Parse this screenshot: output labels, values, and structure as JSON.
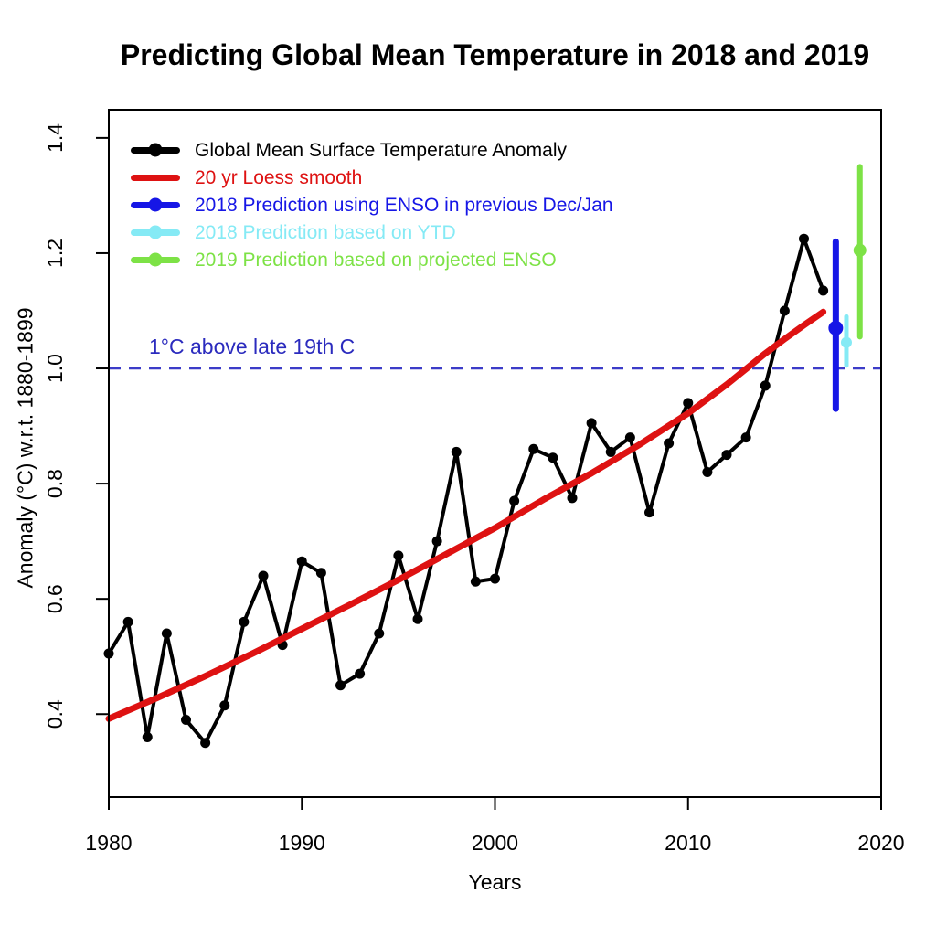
{
  "figure": {
    "title": "Predicting Global Mean Temperature in 2018 and 2019",
    "x_axis_label": "Years",
    "y_axis_label": "Anomaly (°C) w.r.t. 1880-1899"
  },
  "annotation": {
    "text": "1°C above late 19th C",
    "color": "#2B2BBE"
  },
  "legend": {
    "items": [
      {
        "label": "Global Mean Surface Temperature Anomaly",
        "color": "#000000",
        "marker": "line-dot"
      },
      {
        "label": "20 yr Loess smooth",
        "color": "#DE1212",
        "marker": "line"
      },
      {
        "label": "2018 Prediction using ENSO in previous Dec/Jan",
        "color": "#1616E6",
        "marker": "line-dot"
      },
      {
        "label": "2018 Prediction based on YTD",
        "color": "#85EAF5",
        "marker": "line-dot"
      },
      {
        "label": "2019 Prediction based on projected ENSO",
        "color": "#7DE246",
        "marker": "line-dot"
      }
    ]
  },
  "chart_data": {
    "type": "line",
    "title": "Predicting Global Mean Temperature in 2018 and 2019",
    "xlabel": "Years",
    "ylabel": "Anomaly (°C) w.r.t. 1880-1899",
    "xlim": [
      1980,
      2020
    ],
    "ylim": [
      0.256,
      1.449
    ],
    "x_ticks": [
      1980,
      1990,
      2000,
      2010,
      2020
    ],
    "y_ticks": [
      0.4,
      0.6,
      0.8,
      1.0,
      1.2,
      1.4
    ],
    "grid": false,
    "legend_position": "top-left",
    "reference_line": {
      "y": 1.0,
      "style": "dashed",
      "color": "#3C3CC8",
      "label": "1°C above late 19th C"
    },
    "series": [
      {
        "name": "Global Mean Surface Temperature Anomaly",
        "type": "line",
        "marker": true,
        "color": "#000000",
        "x": [
          1980,
          1981,
          1982,
          1983,
          1984,
          1985,
          1986,
          1987,
          1988,
          1989,
          1990,
          1991,
          1992,
          1993,
          1994,
          1995,
          1996,
          1997,
          1998,
          1999,
          2000,
          2001,
          2002,
          2003,
          2004,
          2005,
          2006,
          2007,
          2008,
          2009,
          2010,
          2011,
          2012,
          2013,
          2014,
          2015,
          2016,
          2017
        ],
        "values": [
          0.505,
          0.56,
          0.36,
          0.54,
          0.39,
          0.35,
          0.415,
          0.56,
          0.64,
          0.52,
          0.665,
          0.645,
          0.45,
          0.47,
          0.54,
          0.675,
          0.565,
          0.7,
          0.855,
          0.63,
          0.635,
          0.77,
          0.86,
          0.845,
          0.775,
          0.905,
          0.855,
          0.88,
          0.75,
          0.87,
          0.94,
          0.82,
          0.85,
          0.88,
          0.97,
          1.1,
          1.225,
          1.135
        ]
      },
      {
        "name": "20 yr Loess smooth",
        "type": "line",
        "marker": false,
        "color": "#DE1212",
        "x": [
          1980,
          1982.5,
          1985,
          1987.5,
          1990,
          1992.5,
          1995,
          1997.5,
          2000,
          2002.5,
          2005,
          2007.5,
          2010,
          2012,
          2014,
          2015,
          2016,
          2017
        ],
        "values": [
          0.392,
          0.428,
          0.466,
          0.506,
          0.548,
          0.59,
          0.633,
          0.678,
          0.723,
          0.772,
          0.818,
          0.868,
          0.922,
          0.972,
          1.026,
          1.051,
          1.075,
          1.098
        ]
      },
      {
        "name": "2018 Prediction using ENSO in previous Dec/Jan",
        "type": "errorbar",
        "color": "#1616E6",
        "x": 2017.65,
        "center": 1.07,
        "low": 0.93,
        "high": 1.22
      },
      {
        "name": "2018 Prediction based on YTD",
        "type": "errorbar",
        "color": "#85EAF5",
        "x": 2018.2,
        "center": 1.045,
        "low": 1.005,
        "high": 1.09
      },
      {
        "name": "2019 Prediction based on projected ENSO",
        "type": "errorbar",
        "color": "#7DE246",
        "x": 2018.9,
        "center": 1.205,
        "low": 1.055,
        "high": 1.35
      }
    ]
  }
}
